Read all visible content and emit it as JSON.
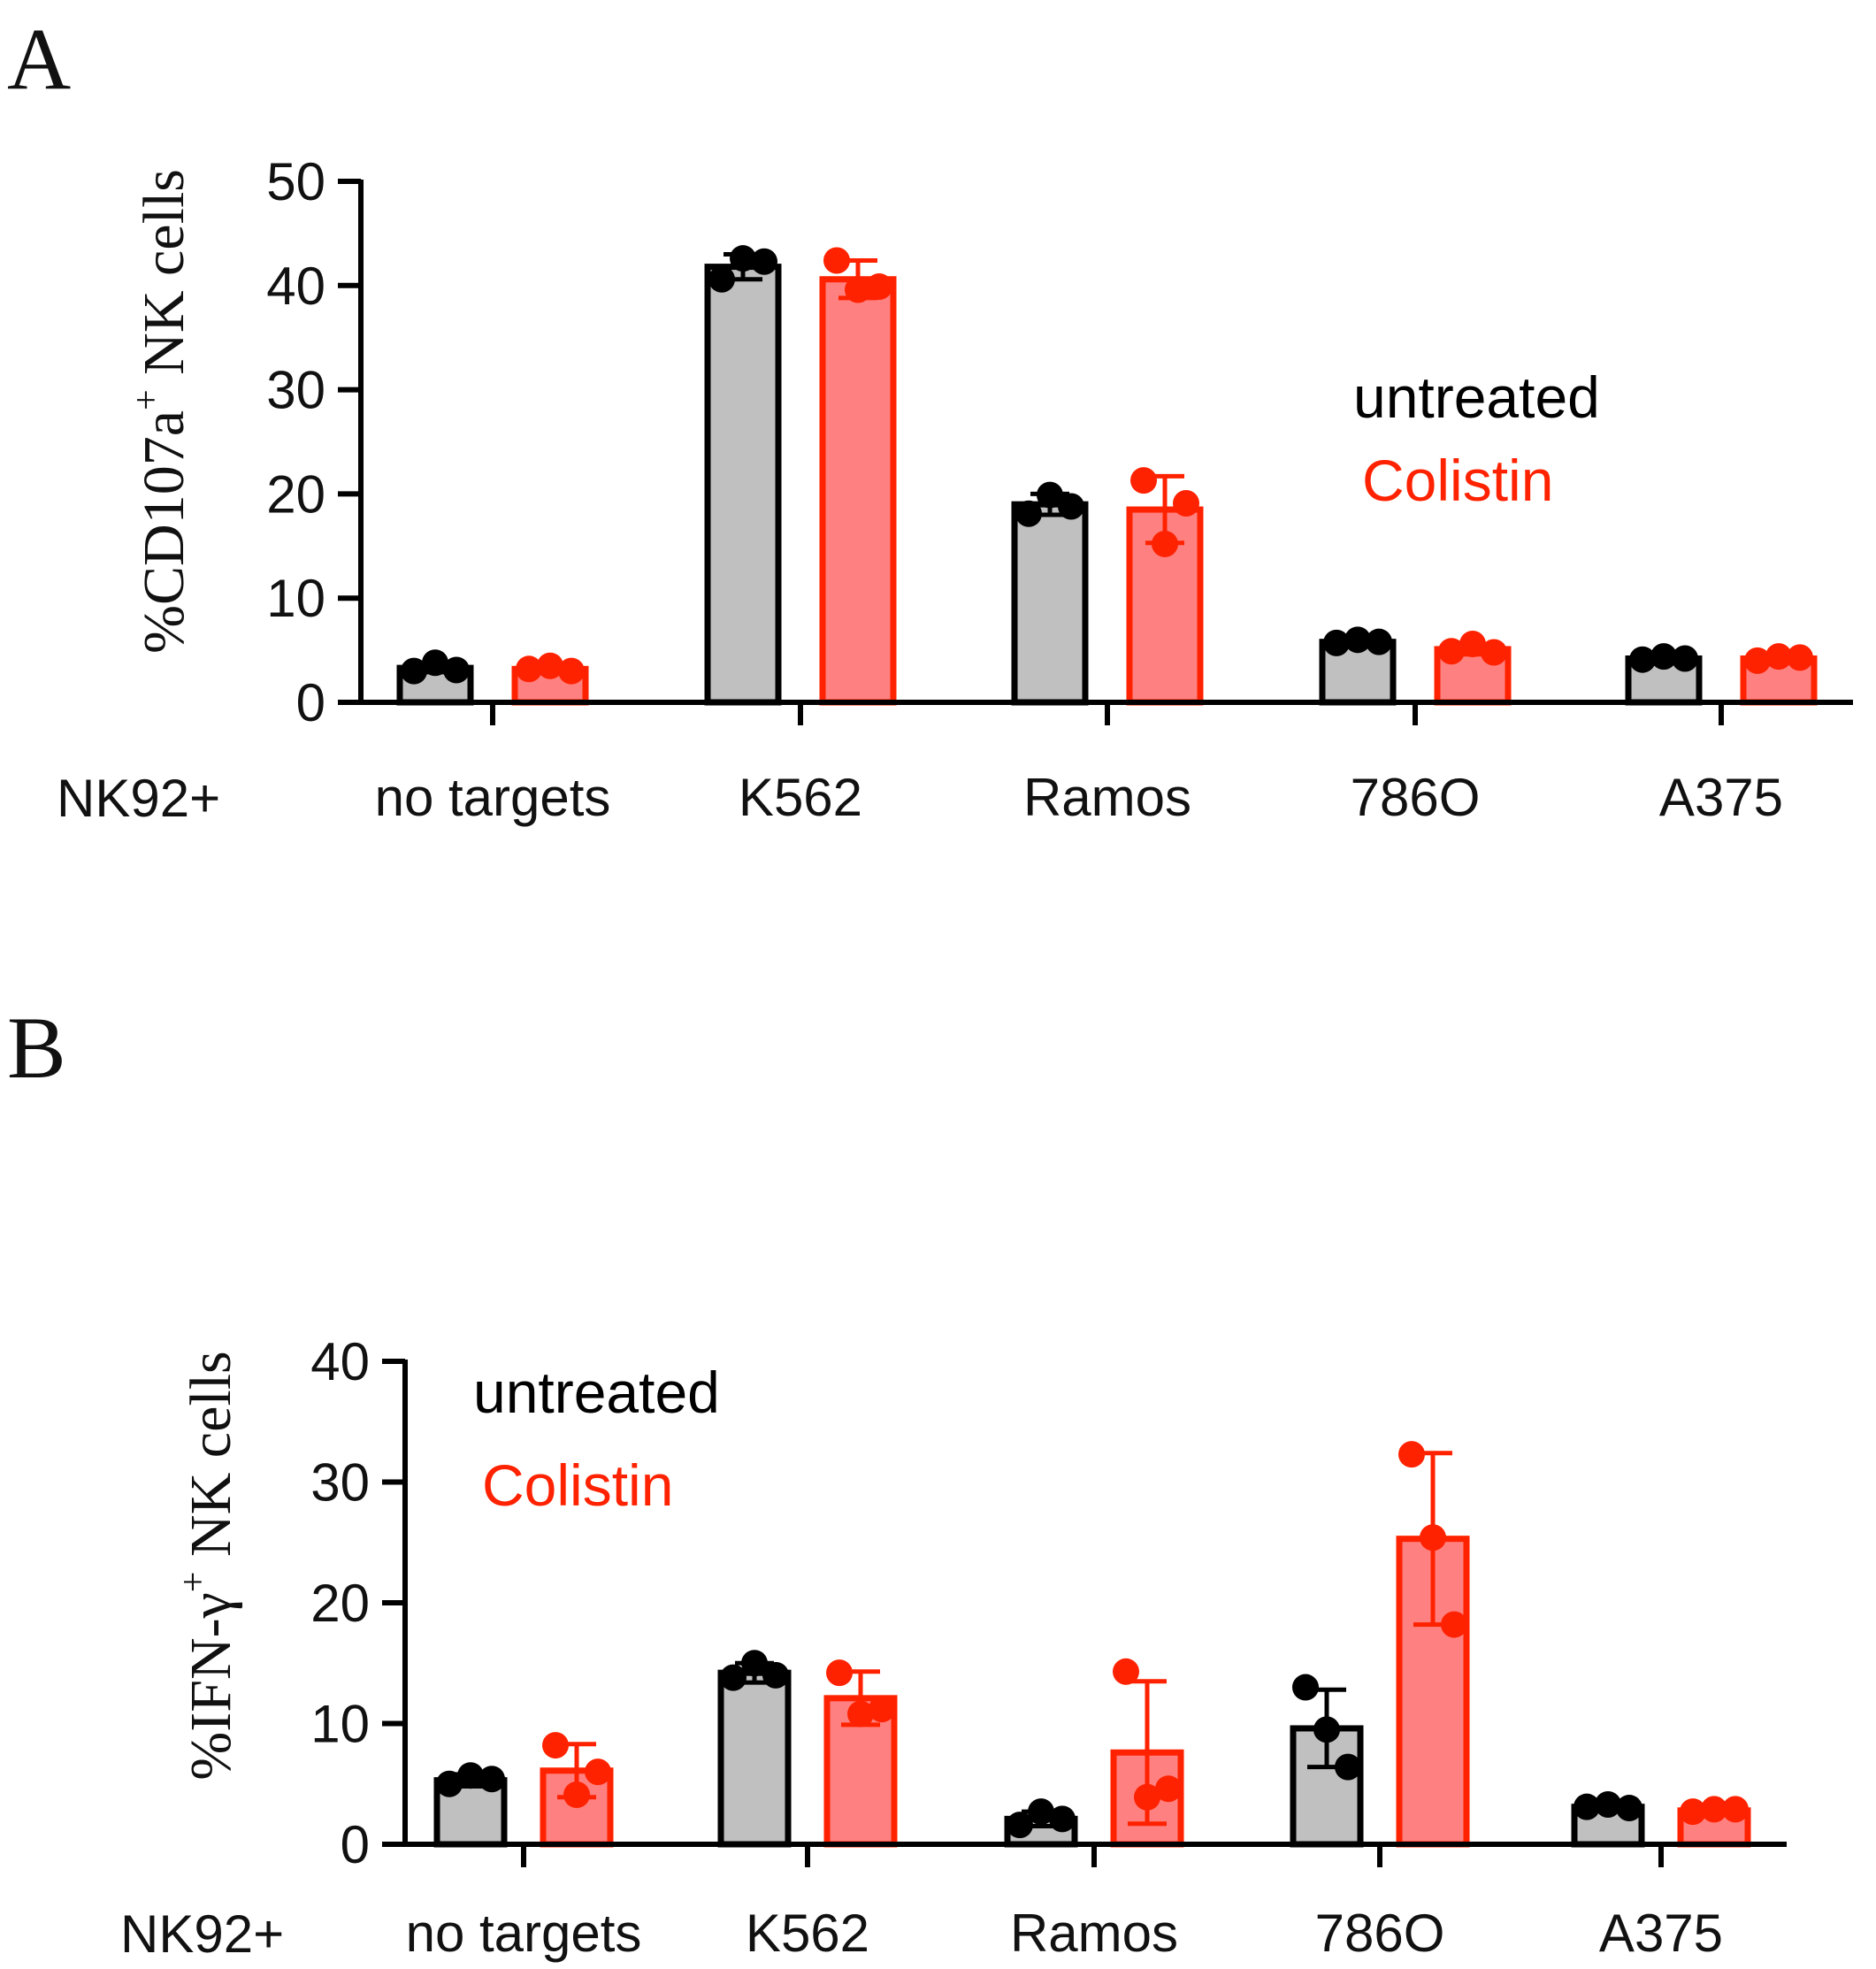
{
  "colors": {
    "untreated_fill": "#c0c0c0",
    "untreated_stroke": "#000000",
    "colistin_fill": "#ff8080",
    "colistin_stroke": "#ff2200",
    "axis": "#000000"
  },
  "chart_data": [
    {
      "panel": "A",
      "type": "bar",
      "ylabel_main": "%CD107a",
      "ylabel_sup": "+",
      "ylabel_tail": " NK cells",
      "x_prefix": "NK92+",
      "categories": [
        "no targets",
        "K562",
        "Ramos",
        "786O",
        "A375"
      ],
      "ylim": [
        0,
        50
      ],
      "yticks": [
        0,
        10,
        20,
        30,
        40,
        50
      ],
      "legend": {
        "untreated": "untreated",
        "colistin": "Colistin",
        "placement": "top-right"
      },
      "series": [
        {
          "name": "untreated",
          "values": [
            3.3,
            41.8,
            19.0,
            5.8,
            4.2
          ],
          "error": [
            0.4,
            1.2,
            1.0,
            0.3,
            0.3
          ],
          "points": [
            [
              3.0,
              3.8,
              3.1
            ],
            [
              40.6,
              42.6,
              42.3
            ],
            [
              18.1,
              19.9,
              18.8
            ],
            [
              5.7,
              6.0,
              5.8
            ],
            [
              4.1,
              4.4,
              4.2
            ]
          ]
        },
        {
          "name": "Colistin",
          "values": [
            3.2,
            40.6,
            18.5,
            5.1,
            4.2
          ],
          "error": [
            0.3,
            1.8,
            3.2,
            0.5,
            0.3
          ],
          "points": [
            [
              3.2,
              3.5,
              3.0
            ],
            [
              42.4,
              39.6,
              39.9
            ],
            [
              21.3,
              15.2,
              19.1
            ],
            [
              4.9,
              5.6,
              4.8
            ],
            [
              4.0,
              4.4,
              4.3
            ]
          ]
        }
      ]
    },
    {
      "panel": "B",
      "type": "bar",
      "ylabel_main": "%IFN-γ",
      "ylabel_sup": "+",
      "ylabel_tail": " NK cells",
      "x_prefix": "NK92+",
      "categories": [
        "no targets",
        "K562",
        "Ramos",
        "786O",
        "A375"
      ],
      "ylim": [
        0,
        40
      ],
      "yticks": [
        0,
        10,
        20,
        30,
        40
      ],
      "legend": {
        "untreated": "untreated",
        "colistin": "Colistin",
        "placement": "top-left"
      },
      "series": [
        {
          "name": "untreated",
          "values": [
            5.3,
            14.2,
            2.1,
            9.6,
            3.1
          ],
          "error": [
            0.5,
            0.8,
            0.6,
            3.2,
            0.2
          ],
          "points": [
            [
              5.0,
              5.7,
              5.4
            ],
            [
              13.8,
              15.0,
              14.0
            ],
            [
              1.6,
              2.7,
              2.1
            ],
            [
              13.0,
              9.5,
              6.4
            ],
            [
              3.1,
              3.3,
              3.0
            ]
          ]
        },
        {
          "name": "Colistin",
          "values": [
            6.1,
            12.1,
            7.6,
            25.3,
            2.8
          ],
          "error": [
            2.2,
            2.2,
            5.9,
            7.1,
            0.2
          ],
          "points": [
            [
              8.2,
              4.1,
              6.0
            ],
            [
              14.2,
              10.8,
              11.2
            ],
            [
              14.3,
              3.9,
              4.6
            ],
            [
              32.3,
              25.4,
              18.2
            ],
            [
              2.7,
              2.9,
              2.9
            ]
          ]
        }
      ]
    }
  ]
}
